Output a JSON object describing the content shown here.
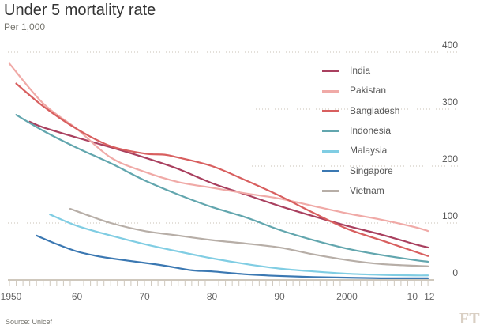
{
  "title": "Under 5 mortality rate",
  "subtitle": "Per 1,000",
  "source": "Source: Unicef",
  "logo": "FT",
  "chart_data": {
    "type": "line",
    "title": "Under 5 mortality rate",
    "ylabel": "Per 1,000",
    "xlim": [
      1950,
      2012
    ],
    "ylim": [
      0,
      400
    ],
    "yticks": [
      0,
      100,
      200,
      300,
      400
    ],
    "xtick_labels": [
      {
        "x": 1950,
        "label": "1950"
      },
      {
        "x": 1960,
        "label": "60"
      },
      {
        "x": 1970,
        "label": "70"
      },
      {
        "x": 1980,
        "label": "80"
      },
      {
        "x": 1990,
        "label": "90"
      },
      {
        "x": 2000,
        "label": "2000"
      },
      {
        "x": 2010,
        "label": "10"
      },
      {
        "x": 2012,
        "label": "12"
      }
    ],
    "grid": true,
    "legend_position": "top-right",
    "series": [
      {
        "name": "India",
        "color": "#a9405f",
        "points": [
          [
            1953,
            278
          ],
          [
            1955,
            268
          ],
          [
            1960,
            250
          ],
          [
            1965,
            233
          ],
          [
            1970,
            215
          ],
          [
            1975,
            195
          ],
          [
            1980,
            170
          ],
          [
            1985,
            150
          ],
          [
            1990,
            130
          ],
          [
            1995,
            112
          ],
          [
            2000,
            95
          ],
          [
            2005,
            80
          ],
          [
            2010,
            63
          ],
          [
            2012,
            57
          ]
        ]
      },
      {
        "name": "Pakistan",
        "color": "#f0aaa7",
        "points": [
          [
            1950,
            380
          ],
          [
            1955,
            310
          ],
          [
            1960,
            265
          ],
          [
            1965,
            215
          ],
          [
            1970,
            190
          ],
          [
            1975,
            172
          ],
          [
            1980,
            162
          ],
          [
            1985,
            152
          ],
          [
            1990,
            143
          ],
          [
            1995,
            130
          ],
          [
            2000,
            117
          ],
          [
            2005,
            106
          ],
          [
            2010,
            93
          ],
          [
            2012,
            86
          ]
        ]
      },
      {
        "name": "Bangladesh",
        "color": "#d85f5f",
        "points": [
          [
            1951,
            345
          ],
          [
            1955,
            305
          ],
          [
            1960,
            265
          ],
          [
            1965,
            235
          ],
          [
            1970,
            222
          ],
          [
            1973,
            220
          ],
          [
            1975,
            215
          ],
          [
            1980,
            200
          ],
          [
            1985,
            175
          ],
          [
            1990,
            148
          ],
          [
            1995,
            118
          ],
          [
            2000,
            90
          ],
          [
            2005,
            70
          ],
          [
            2010,
            50
          ],
          [
            2012,
            42
          ]
        ]
      },
      {
        "name": "Indonesia",
        "color": "#62a6ae",
        "points": [
          [
            1951,
            290
          ],
          [
            1955,
            262
          ],
          [
            1960,
            232
          ],
          [
            1965,
            205
          ],
          [
            1970,
            175
          ],
          [
            1975,
            150
          ],
          [
            1980,
            128
          ],
          [
            1985,
            110
          ],
          [
            1990,
            88
          ],
          [
            1995,
            70
          ],
          [
            2000,
            55
          ],
          [
            2005,
            44
          ],
          [
            2010,
            35
          ],
          [
            2012,
            32
          ]
        ]
      },
      {
        "name": "Malaysia",
        "color": "#80cde3",
        "points": [
          [
            1956,
            115
          ],
          [
            1960,
            95
          ],
          [
            1965,
            78
          ],
          [
            1970,
            63
          ],
          [
            1975,
            50
          ],
          [
            1980,
            38
          ],
          [
            1985,
            28
          ],
          [
            1990,
            20
          ],
          [
            1995,
            15
          ],
          [
            2000,
            11
          ],
          [
            2005,
            9
          ],
          [
            2010,
            8
          ],
          [
            2012,
            8
          ]
        ]
      },
      {
        "name": "Singapore",
        "color": "#3b78b2",
        "points": [
          [
            1954,
            78
          ],
          [
            1957,
            63
          ],
          [
            1960,
            50
          ],
          [
            1963,
            42
          ],
          [
            1965,
            38
          ],
          [
            1970,
            30
          ],
          [
            1973,
            25
          ],
          [
            1977,
            17
          ],
          [
            1980,
            15
          ],
          [
            1985,
            10
          ],
          [
            1990,
            7
          ],
          [
            1995,
            5
          ],
          [
            2000,
            4
          ],
          [
            2005,
            3
          ],
          [
            2012,
            3
          ]
        ]
      },
      {
        "name": "Vietnam",
        "color": "#b7aea7",
        "points": [
          [
            1959,
            125
          ],
          [
            1962,
            112
          ],
          [
            1965,
            100
          ],
          [
            1970,
            86
          ],
          [
            1975,
            78
          ],
          [
            1980,
            70
          ],
          [
            1985,
            64
          ],
          [
            1990,
            57
          ],
          [
            1995,
            45
          ],
          [
            2000,
            35
          ],
          [
            2005,
            28
          ],
          [
            2010,
            25
          ],
          [
            2012,
            24
          ]
        ]
      }
    ]
  }
}
